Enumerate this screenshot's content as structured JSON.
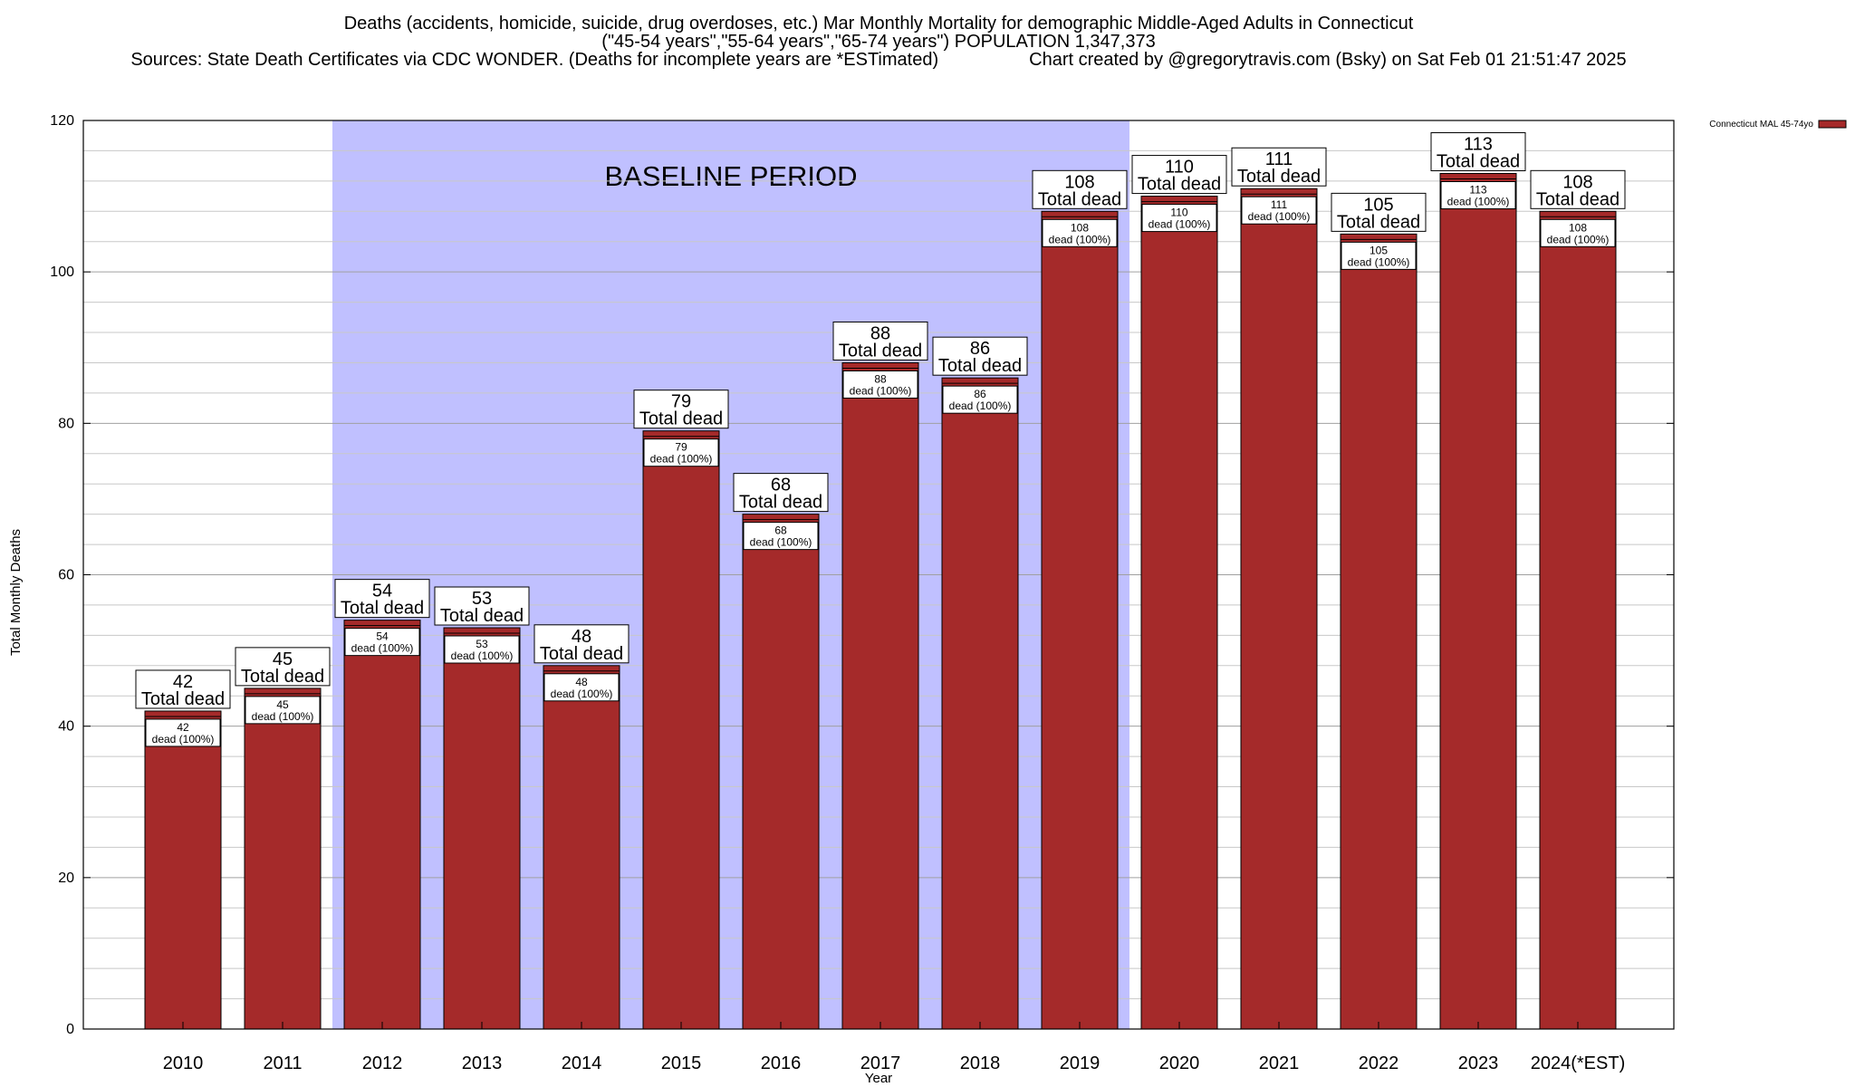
{
  "titles": [
    "Deaths (accidents, homicide, suicide, drug overdoses, etc.) Mar Monthly Mortality for demographic Middle-Aged Adults in Connecticut",
    "(\"45-54 years\",\"55-64 years\",\"65-74 years\") POPULATION 1,347,373",
    "Sources: State Death Certificates via CDC WONDER. (Deaths for incomplete years are *ESTimated)                  Chart created by @gregorytravis.com (Bsky) on Sat Feb 01 21:51:47 2025"
  ],
  "chart_data": {
    "type": "bar",
    "categories": [
      "2010",
      "2011",
      "2012",
      "2013",
      "2014",
      "2015",
      "2016",
      "2017",
      "2018",
      "2019",
      "2020",
      "2021",
      "2022",
      "2023",
      "2024(*EST)"
    ],
    "series": [
      {
        "name": "Connecticut MAL 45-74yo",
        "values": [
          42,
          45,
          54,
          53,
          48,
          79,
          68,
          88,
          86,
          108,
          110,
          111,
          105,
          113,
          108
        ],
        "color": "#a52a2a"
      }
    ],
    "bar_label_total_text": "Total dead",
    "bar_label_share_text": "dead (100%)",
    "xlabel": "Year",
    "ylabel": "Total Monthly Deaths",
    "ylim": [
      0,
      120
    ],
    "yticks": [
      0,
      20,
      40,
      60,
      80,
      100,
      120
    ],
    "minor_grid_step": 4,
    "grid": true,
    "legend_position": "top-right",
    "baseline_period": {
      "label": "BASELINE PERIOD",
      "start_category": "2012",
      "end_category": "2019",
      "color": "#c0c0ff"
    }
  }
}
